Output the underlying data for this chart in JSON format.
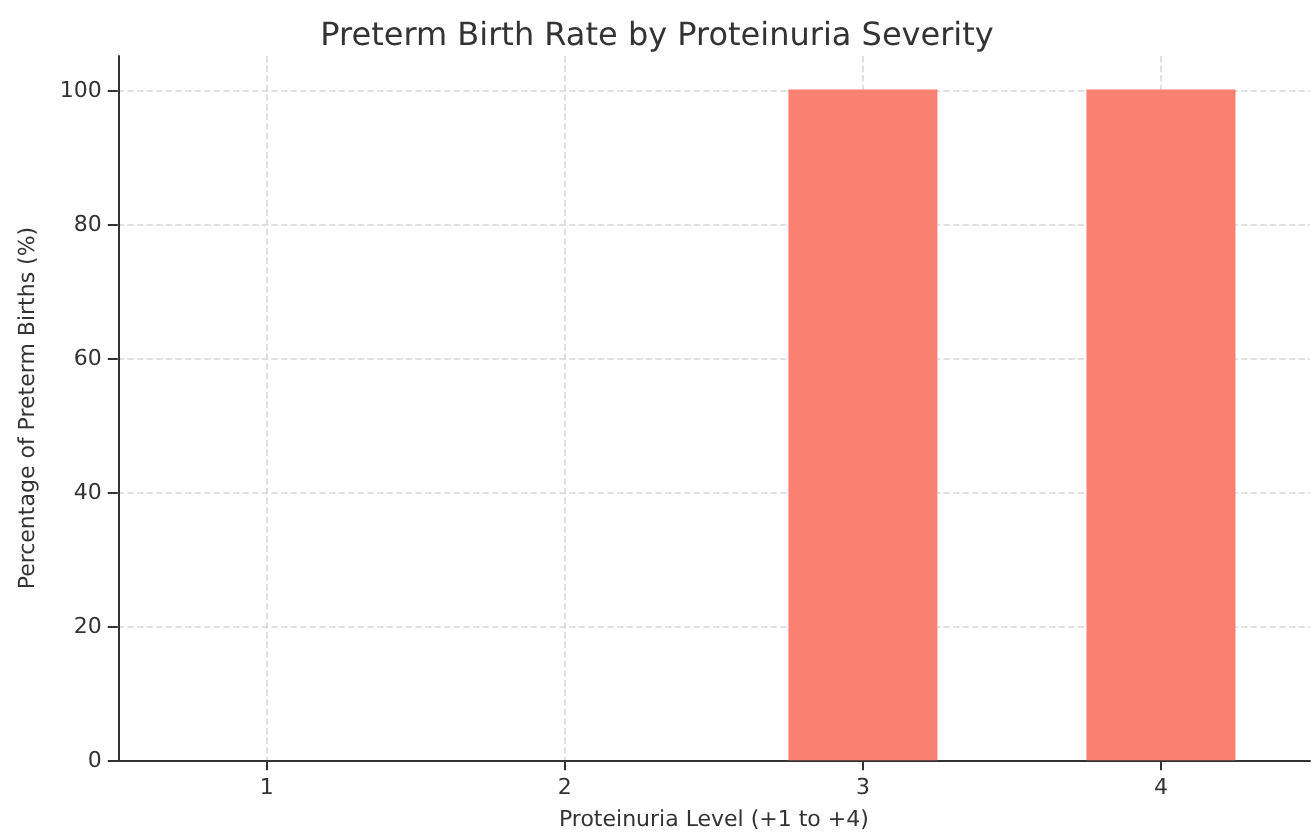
{
  "chart_data": {
    "type": "bar",
    "title": "Preterm Birth Rate by Proteinuria Severity",
    "xlabel": "Proteinuria Level (+1 to +4)",
    "ylabel": "Percentage of Preterm Births (%)",
    "x": [
      1,
      2,
      3,
      4
    ],
    "values": [
      0,
      0,
      100,
      100
    ],
    "color": "#fa8072",
    "xlim": [
      0.5,
      4.5
    ],
    "xticks": [
      1,
      2,
      3,
      4
    ],
    "ylim": [
      0,
      105
    ],
    "yticks": [
      0,
      20,
      40,
      60,
      80,
      100
    ],
    "grid": true
  }
}
